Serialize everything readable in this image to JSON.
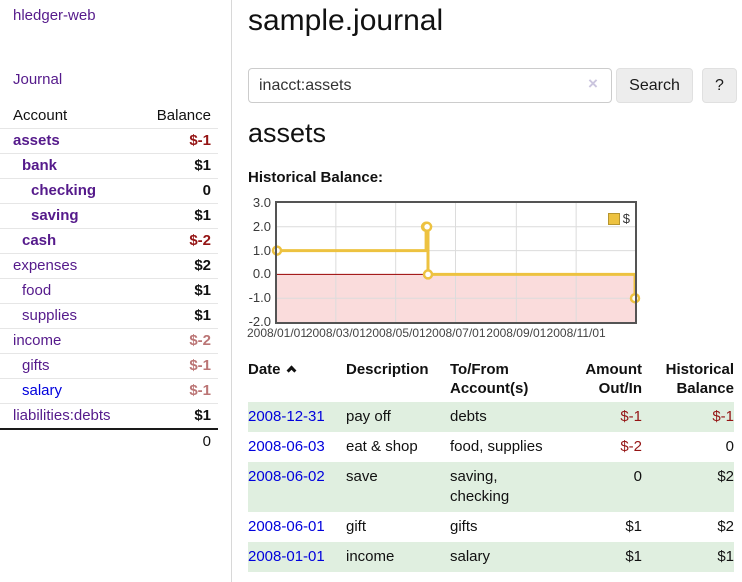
{
  "colors": {
    "link_purple": "#551a8b",
    "link_blue": "#0000dd",
    "negative_strong": "#941414",
    "negative_soft": "#bb7575",
    "row_green": "#e0efe0",
    "series_gold": "#edc240"
  },
  "sidebar": {
    "brand": "hledger-web",
    "journal_link": "Journal",
    "accounts": {
      "headers": {
        "account": "Account",
        "balance": "Balance"
      },
      "rows": [
        {
          "name": "assets",
          "depth": 0,
          "balance": "$-1"
        },
        {
          "name": "bank",
          "depth": 1,
          "balance": "$1"
        },
        {
          "name": "checking",
          "depth": 2,
          "balance": "0"
        },
        {
          "name": "saving",
          "depth": 2,
          "balance": "$1"
        },
        {
          "name": "cash",
          "depth": 1,
          "balance": "$-2"
        },
        {
          "name": "expenses",
          "depth": 0,
          "balance": "$2"
        },
        {
          "name": "food",
          "depth": 1,
          "balance": "$1"
        },
        {
          "name": "supplies",
          "depth": 1,
          "balance": "$1"
        },
        {
          "name": "income",
          "depth": 0,
          "balance": "$-2"
        },
        {
          "name": "gifts",
          "depth": 1,
          "balance": "$-1"
        },
        {
          "name": "salary",
          "depth": 1,
          "balance": "$-1"
        },
        {
          "name": "liabilities:debts",
          "depth": 0,
          "balance": "$1"
        }
      ],
      "total": "0"
    }
  },
  "header": {
    "title": "sample.journal"
  },
  "search": {
    "value": "inacct:assets",
    "clear_icon": "×",
    "button_label": "Search",
    "help_label": "?"
  },
  "account_page": {
    "heading": "assets",
    "chart_label": "Historical Balance:"
  },
  "chart_data": {
    "type": "line",
    "step": true,
    "title": "Historical Balance:",
    "series": [
      {
        "name": "$",
        "color": "#edc240",
        "points": [
          [
            "2008-01-01",
            1
          ],
          [
            "2008-06-01",
            2
          ],
          [
            "2008-06-02",
            2
          ],
          [
            "2008-06-03",
            0
          ],
          [
            "2008-12-31",
            -1
          ]
        ]
      }
    ],
    "xrange": [
      "2008-01-01",
      "2008-12-31"
    ],
    "ylim": [
      -2,
      3
    ],
    "yticks": [
      {
        "label": "3.0",
        "value": 3
      },
      {
        "label": "2.0",
        "value": 2
      },
      {
        "label": "1.0",
        "value": 1
      },
      {
        "label": "0.0",
        "value": 0
      },
      {
        "label": "-1.0",
        "value": -1
      },
      {
        "label": "-2.0",
        "value": -2
      }
    ],
    "xticks": [
      {
        "label": "2008/01/01",
        "date": "2008-01-01"
      },
      {
        "label": "2008/03/01",
        "date": "2008-03-01"
      },
      {
        "label": "2008/05/01",
        "date": "2008-05-01"
      },
      {
        "label": "2008/07/01",
        "date": "2008-07-01"
      },
      {
        "label": "2008/09/01",
        "date": "2008-09-01"
      },
      {
        "label": "2008/11/01",
        "date": "2008-11-01"
      }
    ],
    "grid": true,
    "legend_position": "top-right",
    "negative_region_color": "#fadcdc",
    "zero_line_color": "#990000",
    "border_color": "#545454"
  },
  "register": {
    "headers": {
      "date": "Date",
      "description": "Description",
      "accounts": "To/From Account(s)",
      "amount": "Amount Out/In",
      "balance": "Historical Balance"
    },
    "rows": [
      {
        "date": "2008-12-31",
        "description": "pay off",
        "accounts": "debts",
        "amount": "$-1",
        "balance": "$-1"
      },
      {
        "date": "2008-06-03",
        "description": "eat & shop",
        "accounts": "food, supplies",
        "amount": "$-2",
        "balance": "0"
      },
      {
        "date": "2008-06-02",
        "description": "save",
        "accounts": "saving, checking",
        "amount": "0",
        "balance": "$2"
      },
      {
        "date": "2008-06-01",
        "description": "gift",
        "accounts": "gifts",
        "amount": "$1",
        "balance": "$2"
      },
      {
        "date": "2008-01-01",
        "description": "income",
        "accounts": "salary",
        "amount": "$1",
        "balance": "$1"
      }
    ]
  }
}
